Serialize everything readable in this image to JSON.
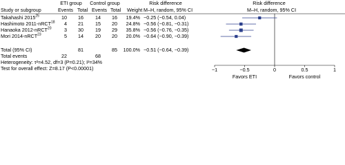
{
  "chart_data": {
    "type": "forest",
    "headers": {
      "study": "Study or subgroup",
      "group1": "ETI group",
      "group2": "Control group",
      "events": "Events",
      "total": "Total",
      "weight": "Weight",
      "effect": "Risk difference",
      "method": "M–H, random, 95% CI"
    },
    "rows": [
      {
        "study": "Takahashi 2015",
        "ref": "25",
        "events1": 10,
        "total1": 16,
        "events2": 14,
        "total2": 16,
        "weight": {
          "value": 19.4,
          "label": "19.4%"
        },
        "estimate": -0.25,
        "ci": [
          -0.54,
          0.04
        ],
        "estimate_label": "−0.25 (−0.54, 0.04)"
      },
      {
        "study": "Hashimoto 2011-nRCT",
        "ref": "18",
        "events1": 4,
        "total1": 21,
        "events2": 15,
        "total2": 20,
        "weight": {
          "value": 24.8,
          "label": "24.8%"
        },
        "estimate": -0.56,
        "ci": [
          -0.81,
          -0.31
        ],
        "estimate_label": "−0.56 (−0.81, −0.31)"
      },
      {
        "study": "Hanaoka 2012-nRCT",
        "ref": "20",
        "events1": 3,
        "total1": 30,
        "events2": 19,
        "total2": 29,
        "weight": {
          "value": 35.8,
          "label": "35.8%"
        },
        "estimate": -0.56,
        "ci": [
          -0.76,
          -0.35
        ],
        "estimate_label": "−0.56 (−0.76, −0.35)"
      },
      {
        "study": "Mori 2014-nRCT",
        "ref": "23",
        "events1": 5,
        "total1": 14,
        "events2": 20,
        "total2": 20,
        "weight": {
          "value": 20.0,
          "label": "20.0%"
        },
        "estimate": -0.64,
        "ci": [
          -0.9,
          -0.39
        ],
        "estimate_label": "−0.64 (−0.90, −0.39)"
      }
    ],
    "total": {
      "label": "Total (95% CI)",
      "total1": 81,
      "total2": 85,
      "weight": {
        "value": 100.0,
        "label": "100.0%"
      },
      "estimate": -0.51,
      "ci": [
        -0.64,
        -0.39
      ],
      "estimate_label": "−0.51 (−0.64, −0.39)"
    },
    "total_events": {
      "label": "Total events",
      "events1": 22,
      "events2": 68
    },
    "heterogeneity": "Heterogeneity: τ²=4.52, df=3 (P=0.21); I²=34%",
    "overall_test": "Test for overall effect: Z=8.17 (P<0.00001)",
    "xlim": [
      -1,
      1
    ],
    "xticks": [
      {
        "value": -1,
        "label": "−1"
      },
      {
        "value": -0.5,
        "label": "−0.5"
      },
      0,
      0.5,
      1
    ],
    "favors_left": "Favors ETI",
    "favors_right": "Favors control",
    "color": "#2b3f8c"
  }
}
